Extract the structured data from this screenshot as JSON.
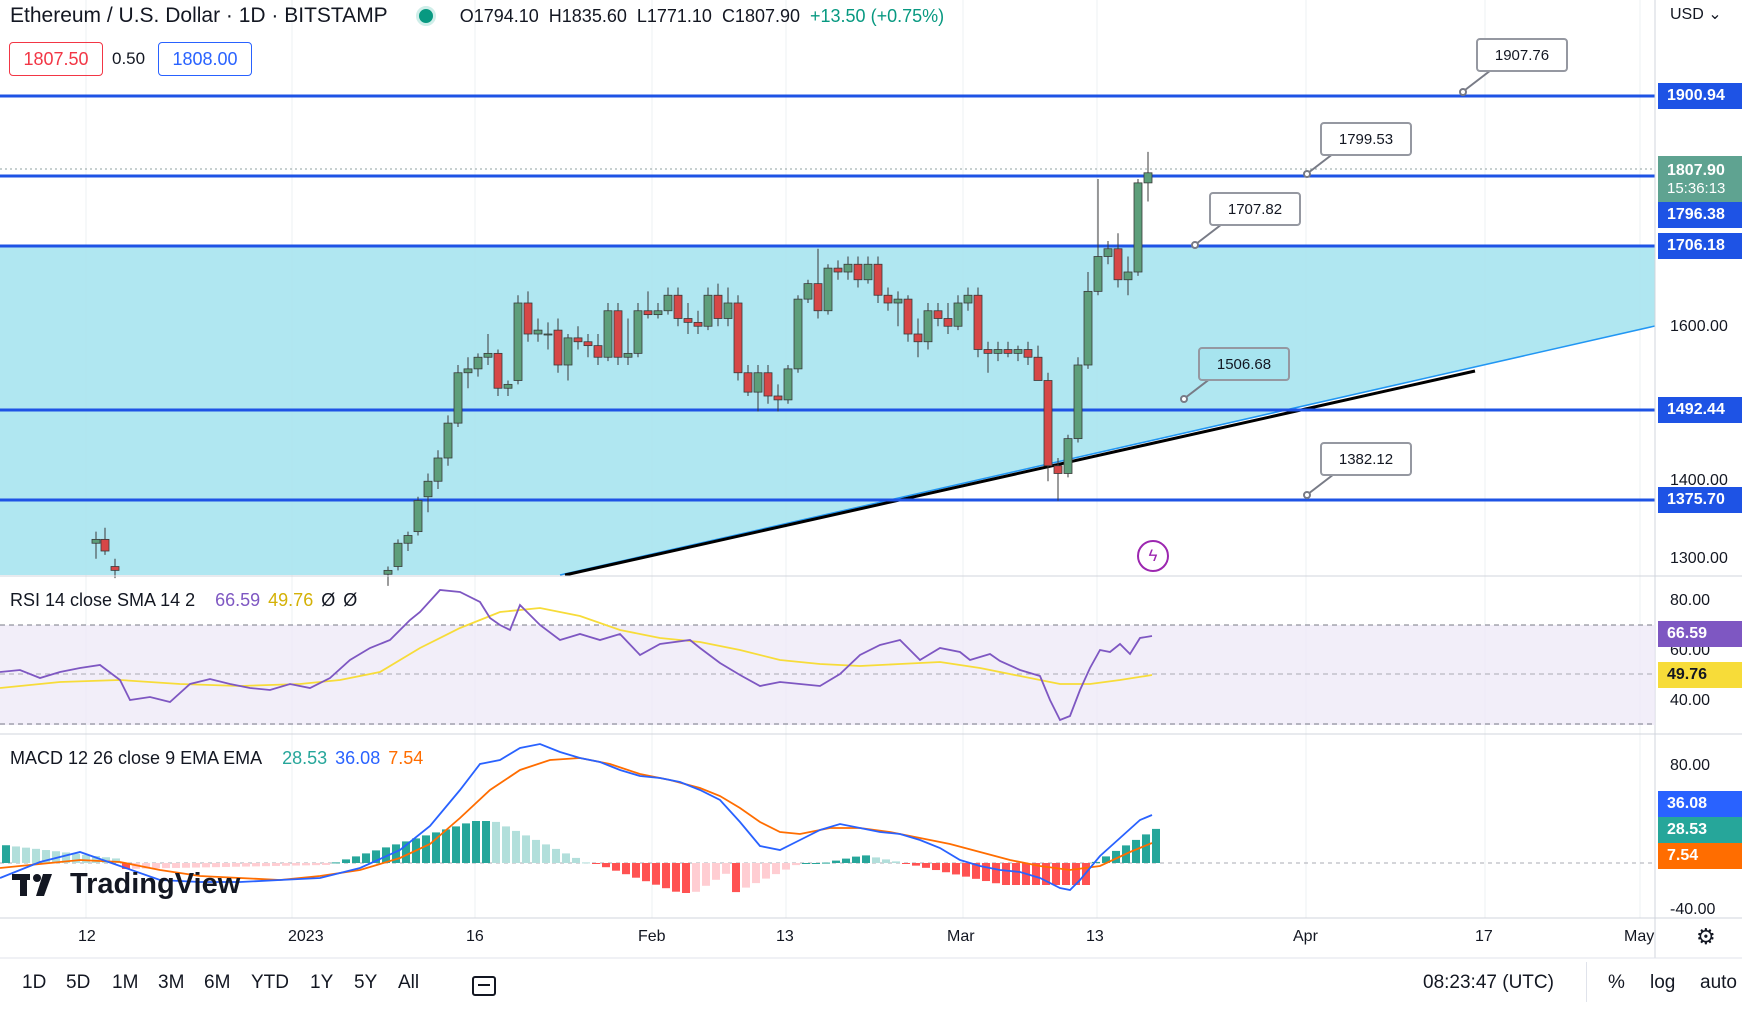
{
  "header": {
    "symbol": "Ethereum / U.S. Dollar · 1D · BITSTAMP",
    "open": "O1794.10",
    "high": "H1835.60",
    "low": "L1771.10",
    "close": "C1807.90",
    "change": "+13.50 (+0.75%)",
    "bid": "1807.50",
    "spread": "0.50",
    "ask": "1808.00",
    "currency": "USD"
  },
  "horizontal_lines": [
    {
      "price": "1900.94",
      "callout": "1907.76"
    },
    {
      "price": "1796.38",
      "callout": "1799.53"
    },
    {
      "price": "1706.18",
      "callout": "1707.82"
    },
    {
      "price": "1492.44",
      "callout": "1506.68"
    },
    {
      "price": "1375.70",
      "callout": "1382.12"
    }
  ],
  "price_axis": {
    "ticks": [
      "1600.00",
      "1400.00",
      "1300.00"
    ],
    "last_price": "1807.90",
    "countdown": "15:36:13"
  },
  "rsi": {
    "title": "RSI 14 close SMA 14 2",
    "rsi_value": "66.59",
    "sma_value": "49.76",
    "extra1": "Ø",
    "extra2": "Ø",
    "ticks": [
      "80.00",
      "60.00",
      "40.00"
    ],
    "colors": {
      "rsi": "#7e57c2",
      "sma": "#f7dc39"
    }
  },
  "macd": {
    "title": "MACD 12 26 close 9 EMA EMA",
    "hist_value": "28.53",
    "macd_value": "36.08",
    "signal_value": "7.54",
    "ticks": [
      "80.00",
      "-40.00"
    ],
    "colors": {
      "macd": "#2962ff",
      "signal": "#ff6d00",
      "hist_up": "#26a69a",
      "hist_down": "#ef5350"
    }
  },
  "time_axis": [
    "12",
    "2023",
    "16",
    "Feb",
    "13",
    "Mar",
    "13",
    "Apr",
    "17",
    "May"
  ],
  "brand": "TradingView",
  "bottom_bar": {
    "timeframes": [
      "1D",
      "5D",
      "1M",
      "3M",
      "6M",
      "YTD",
      "1Y",
      "5Y",
      "All"
    ],
    "clock": "08:23:47 (UTC)",
    "percent": "%",
    "log": "log",
    "auto": "auto"
  },
  "icons": [
    "calendar-range-icon",
    "gear-icon",
    "lightning-icon"
  ]
}
